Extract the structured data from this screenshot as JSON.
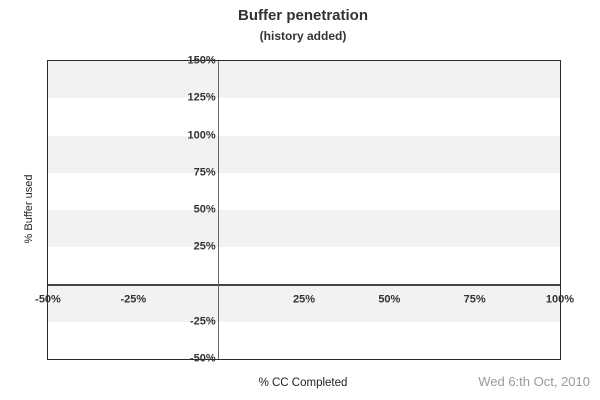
{
  "header": {
    "title": "Buffer penetration",
    "subtitle": "(history added)"
  },
  "footer": {
    "date": "Wed 6:th Oct, 2010"
  },
  "colors": {
    "band_gray": "#f2f2f2",
    "band_white": "#ffffff",
    "plot_border": "#2a2a2a",
    "zero_line_horizontal": "#444444",
    "zero_line_vertical": "#666666",
    "tick_text": "#333333",
    "title_text": "#333333",
    "axis_title_text": "#222222",
    "date_text": "#999999"
  },
  "chart_data": {
    "type": "line",
    "title": "Buffer penetration",
    "subtitle": "(history added)",
    "xlabel": "% CC Completed",
    "ylabel": "% Buffer used",
    "xlim": [
      -50,
      100
    ],
    "ylim": [
      -50,
      150
    ],
    "x_ticks": [
      {
        "value": -50,
        "label": "-50%"
      },
      {
        "value": -25,
        "label": "-25%"
      },
      {
        "value": 25,
        "label": "25%"
      },
      {
        "value": 50,
        "label": "50%"
      },
      {
        "value": 75,
        "label": "75%"
      },
      {
        "value": 100,
        "label": "100%"
      }
    ],
    "y_ticks": [
      {
        "value": 150,
        "label": "150%"
      },
      {
        "value": 125,
        "label": "125%"
      },
      {
        "value": 100,
        "label": "100%"
      },
      {
        "value": 75,
        "label": "75%"
      },
      {
        "value": 50,
        "label": "50%"
      },
      {
        "value": 25,
        "label": "25%"
      },
      {
        "value": -25,
        "label": "-25%"
      },
      {
        "value": -50,
        "label": "-50%"
      }
    ],
    "series": [],
    "grid": {
      "band_step_pct": 25,
      "pattern": "alternating horizontal bands, gray first from top",
      "legend_position": "none"
    },
    "zero_lines": {
      "horizontal": true,
      "vertical": true
    },
    "annotations": {
      "footer_date": "Wed 6:th Oct, 2010"
    }
  }
}
